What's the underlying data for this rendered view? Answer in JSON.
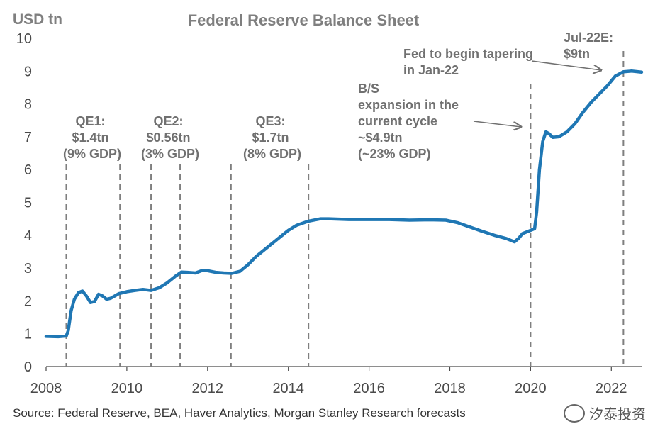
{
  "chart_data": {
    "type": "line",
    "title": "Federal Reserve Balance Sheet",
    "ylabel": "USD tn",
    "xlabel": "",
    "xlim": [
      2008,
      2022.75
    ],
    "ylim": [
      0,
      10
    ],
    "yticks": [
      "0",
      "1",
      "2",
      "3",
      "4",
      "5",
      "6",
      "7",
      "8",
      "9",
      "10"
    ],
    "xticks": [
      "2008",
      "2010",
      "2012",
      "2014",
      "2016",
      "2018",
      "2020",
      "2022"
    ],
    "grid": false,
    "legend": "none",
    "line_color": "#1f77b4",
    "series": [
      {
        "values": [
          [
            2008.0,
            0.92
          ],
          [
            2008.3,
            0.91
          ],
          [
            2008.5,
            0.93
          ],
          [
            2008.55,
            1.1
          ],
          [
            2008.62,
            1.7
          ],
          [
            2008.7,
            2.05
          ],
          [
            2008.8,
            2.25
          ],
          [
            2008.9,
            2.3
          ],
          [
            2009.0,
            2.15
          ],
          [
            2009.1,
            1.95
          ],
          [
            2009.2,
            1.98
          ],
          [
            2009.3,
            2.2
          ],
          [
            2009.4,
            2.15
          ],
          [
            2009.5,
            2.05
          ],
          [
            2009.6,
            2.08
          ],
          [
            2009.7,
            2.15
          ],
          [
            2009.8,
            2.22
          ],
          [
            2010.0,
            2.28
          ],
          [
            2010.2,
            2.32
          ],
          [
            2010.4,
            2.35
          ],
          [
            2010.6,
            2.32
          ],
          [
            2010.8,
            2.4
          ],
          [
            2011.0,
            2.55
          ],
          [
            2011.2,
            2.75
          ],
          [
            2011.35,
            2.88
          ],
          [
            2011.5,
            2.87
          ],
          [
            2011.7,
            2.85
          ],
          [
            2011.85,
            2.92
          ],
          [
            2012.0,
            2.92
          ],
          [
            2012.2,
            2.87
          ],
          [
            2012.4,
            2.85
          ],
          [
            2012.6,
            2.84
          ],
          [
            2012.8,
            2.9
          ],
          [
            2013.0,
            3.1
          ],
          [
            2013.2,
            3.35
          ],
          [
            2013.5,
            3.65
          ],
          [
            2013.8,
            3.95
          ],
          [
            2014.0,
            4.15
          ],
          [
            2014.2,
            4.3
          ],
          [
            2014.5,
            4.43
          ],
          [
            2014.8,
            4.5
          ],
          [
            2015.0,
            4.5
          ],
          [
            2015.5,
            4.48
          ],
          [
            2016.0,
            4.48
          ],
          [
            2016.5,
            4.48
          ],
          [
            2017.0,
            4.46
          ],
          [
            2017.5,
            4.47
          ],
          [
            2017.9,
            4.46
          ],
          [
            2018.2,
            4.38
          ],
          [
            2018.5,
            4.25
          ],
          [
            2018.8,
            4.12
          ],
          [
            2019.1,
            4.0
          ],
          [
            2019.4,
            3.9
          ],
          [
            2019.6,
            3.8
          ],
          [
            2019.7,
            3.9
          ],
          [
            2019.8,
            4.05
          ],
          [
            2019.9,
            4.1
          ],
          [
            2020.0,
            4.15
          ],
          [
            2020.1,
            4.2
          ],
          [
            2020.15,
            4.7
          ],
          [
            2020.22,
            6.0
          ],
          [
            2020.3,
            6.85
          ],
          [
            2020.38,
            7.15
          ],
          [
            2020.45,
            7.1
          ],
          [
            2020.55,
            6.98
          ],
          [
            2020.7,
            7.0
          ],
          [
            2020.9,
            7.15
          ],
          [
            2021.1,
            7.4
          ],
          [
            2021.3,
            7.75
          ],
          [
            2021.5,
            8.05
          ],
          [
            2021.7,
            8.3
          ],
          [
            2021.9,
            8.55
          ],
          [
            2022.1,
            8.85
          ],
          [
            2022.3,
            8.98
          ],
          [
            2022.5,
            9.0
          ],
          [
            2022.75,
            8.97
          ]
        ]
      }
    ],
    "markers": [
      {
        "x": 2008.5,
        "label": [
          "QE1:",
          "$1.4tn",
          "(9% GDP)"
        ]
      },
      {
        "x": 2009.83,
        "label": []
      },
      {
        "x": 2010.6,
        "label": [
          "QE2:",
          "$0.56tn",
          "(3% GDP)"
        ]
      },
      {
        "x": 2011.32,
        "label": []
      },
      {
        "x": 2012.58,
        "label": [
          "QE3:",
          "$1.7tn",
          "(8% GDP)"
        ]
      },
      {
        "x": 2014.5,
        "label": []
      },
      {
        "x": 2020.0,
        "label": [
          "B/S",
          "expansion in the",
          "current cycle",
          "~$4.9tn",
          "(~23% GDP)"
        ]
      },
      {
        "x": 2022.3,
        "label": [
          "Jul-22E:",
          "$9tn"
        ]
      }
    ],
    "annotations": [
      {
        "text": [
          "Fed to begin tapering",
          "in Jan-22"
        ]
      }
    ]
  },
  "footer": {
    "source": "Source: Federal Reserve, BEA, Haver Analytics, Morgan Stanley Research forecasts",
    "watermark": "汐泰投资"
  }
}
